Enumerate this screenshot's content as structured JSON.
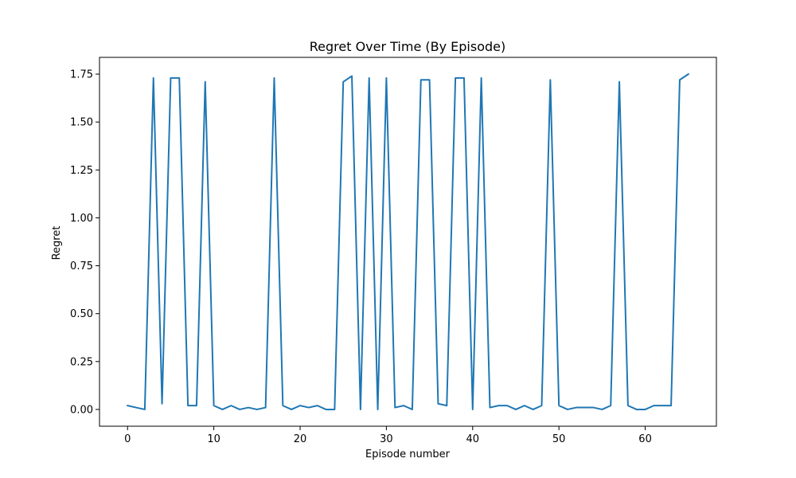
{
  "chart_data": {
    "type": "line",
    "title": "Regret Over Time (By Episode)",
    "xlabel": "Episode number",
    "ylabel": "Regret",
    "xlim": [
      -3.25,
      68.25
    ],
    "ylim": [
      -0.0875,
      1.8375
    ],
    "xticks": [
      0,
      10,
      20,
      30,
      40,
      50,
      60
    ],
    "xtick_labels": [
      "0",
      "10",
      "20",
      "30",
      "40",
      "50",
      "60"
    ],
    "yticks": [
      0.0,
      0.25,
      0.5,
      0.75,
      1.0,
      1.25,
      1.5,
      1.75
    ],
    "ytick_labels": [
      "0.00",
      "0.25",
      "0.50",
      "0.75",
      "1.00",
      "1.25",
      "1.50",
      "1.75"
    ],
    "grid": false,
    "series": [
      {
        "color": "#1f77b4",
        "x": [
          0,
          1,
          2,
          3,
          4,
          5,
          6,
          7,
          8,
          9,
          10,
          11,
          12,
          13,
          14,
          15,
          16,
          17,
          18,
          19,
          20,
          21,
          22,
          23,
          24,
          25,
          26,
          27,
          28,
          29,
          30,
          31,
          32,
          33,
          34,
          35,
          36,
          37,
          38,
          39,
          40,
          41,
          42,
          43,
          44,
          45,
          46,
          47,
          48,
          49,
          50,
          51,
          52,
          53,
          54,
          55,
          56,
          57,
          58,
          59,
          60,
          61,
          62,
          63,
          64,
          65
        ],
        "y": [
          0.02,
          0.01,
          0.0,
          1.73,
          0.03,
          1.73,
          1.73,
          0.02,
          0.02,
          1.71,
          0.02,
          0.0,
          0.02,
          0.0,
          0.01,
          0.0,
          0.01,
          1.73,
          0.02,
          0.0,
          0.02,
          0.01,
          0.02,
          0.0,
          0.0,
          1.71,
          1.74,
          0.0,
          1.73,
          0.0,
          1.73,
          0.01,
          0.02,
          0.0,
          1.72,
          1.72,
          0.03,
          0.02,
          1.73,
          1.73,
          0.0,
          1.73,
          0.01,
          0.02,
          0.02,
          0.0,
          0.02,
          0.0,
          0.02,
          1.72,
          0.02,
          0.0,
          0.01,
          0.01,
          0.01,
          0.0,
          0.02,
          1.71,
          0.02,
          0.0,
          0.0,
          0.02,
          0.02,
          0.02,
          1.72,
          1.75
        ]
      }
    ]
  }
}
